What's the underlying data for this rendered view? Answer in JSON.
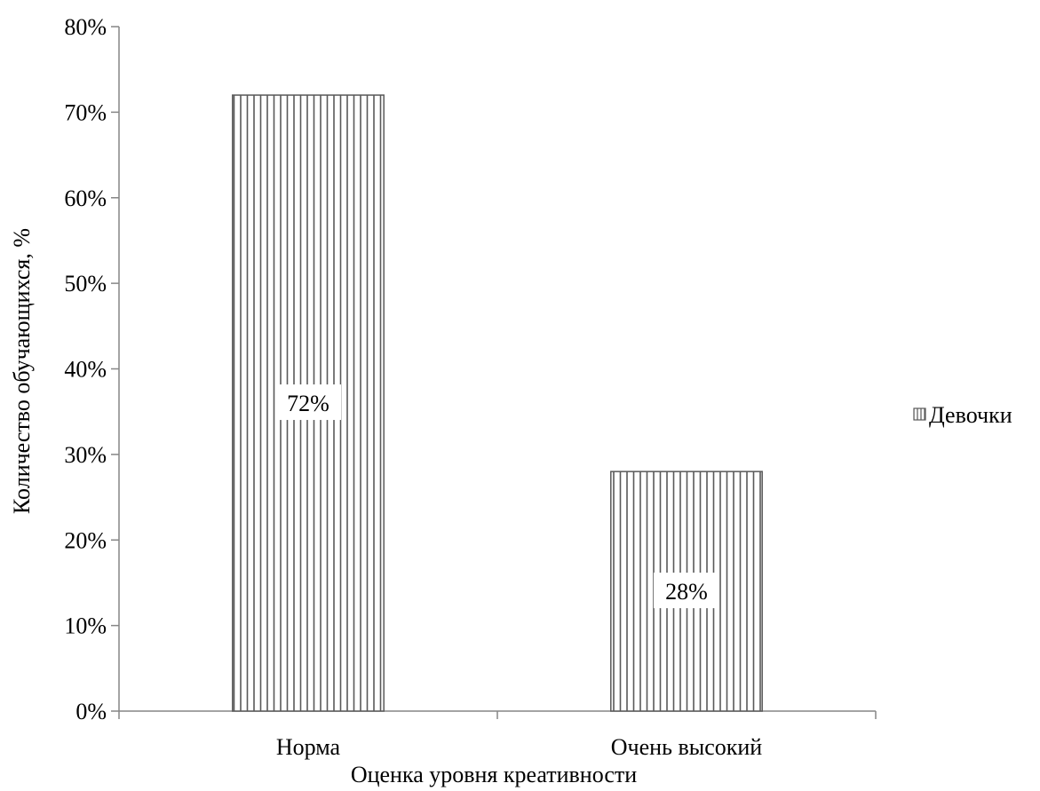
{
  "chart_data": {
    "type": "bar",
    "categories": [
      "Норма",
      "Очень высокий"
    ],
    "series": [
      {
        "name": "Девочки",
        "values": [
          72,
          28
        ]
      }
    ],
    "data_labels": [
      "72%",
      "28%"
    ],
    "y_ticks": [
      "0%",
      "10%",
      "20%",
      "30%",
      "40%",
      "50%",
      "60%",
      "70%",
      "80%"
    ],
    "ylim": [
      0,
      80
    ],
    "xlabel": "Оценка уровня креативности",
    "ylabel": "Количество обучающихся, %",
    "legend_position": "right",
    "grid": false,
    "bar_fill": "vertical-stripes",
    "colors": {
      "bar_stroke": "#595959",
      "axis": "#868686",
      "text": "#000000"
    }
  }
}
